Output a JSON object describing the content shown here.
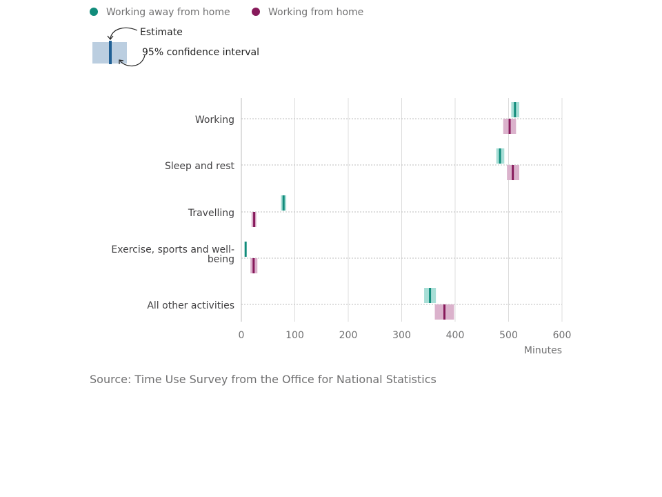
{
  "legend": {
    "series": [
      {
        "name": "Working away from home",
        "color": "#206095"
      },
      {
        "name": "Working from home",
        "color": "#871a5b"
      }
    ],
    "key": {
      "estimate_label": "Estimate",
      "ci_label": "95% confidence interval",
      "bar_color": "#bbcee0",
      "line_color": "#206095"
    }
  },
  "source": "Source: Time Use Survey from the Office for National Statistics",
  "chart_data": {
    "type": "range",
    "categories": [
      "Working",
      "Sleep and rest",
      "Travelling",
      "Exercise, sports and well-being",
      "All other activities"
    ],
    "category_lines": [
      [
        "Working"
      ],
      [
        "Sleep and rest"
      ],
      [
        "Travelling"
      ],
      [
        "Exercise, sports and well-",
        "being"
      ],
      [
        "All other activities"
      ]
    ],
    "series": [
      {
        "name": "Working away from home",
        "color": "#118c7b",
        "ci_color": "#a7ded6",
        "values": [
          512,
          484,
          79,
          8,
          353
        ],
        "ci_low": [
          505,
          477,
          74,
          7,
          342
        ],
        "ci_high": [
          520,
          492,
          84,
          9,
          364
        ]
      },
      {
        "name": "Working from home",
        "color": "#871a5b",
        "ci_color": "#dbb2cc",
        "values": [
          502,
          508,
          24,
          23,
          380
        ],
        "ci_low": [
          490,
          497,
          19,
          17,
          362
        ],
        "ci_high": [
          514,
          520,
          28,
          30,
          398
        ]
      }
    ],
    "xlabel": "Minutes",
    "xlim": [
      0,
      600
    ],
    "xticks": [
      0,
      100,
      200,
      300,
      400,
      500,
      600
    ],
    "grid": true,
    "legend_position": "top-left"
  }
}
